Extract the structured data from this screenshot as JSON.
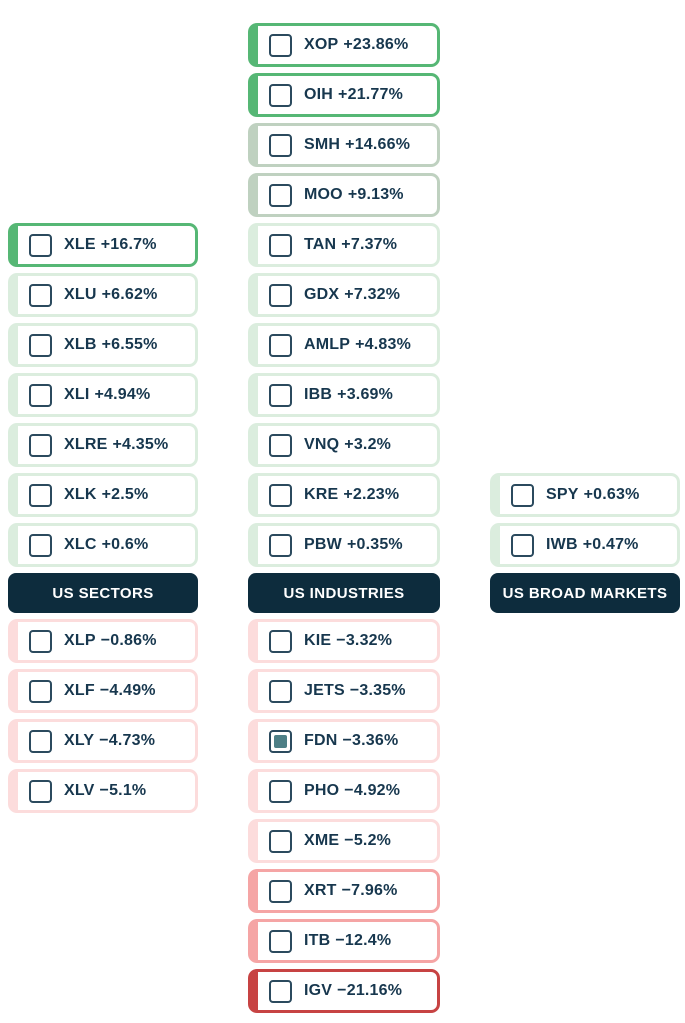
{
  "palette": {
    "green_strong": "#56b775",
    "green_medium": "#bfd1c0",
    "green_light": "#dbedde",
    "red_light": "#fcdcdc",
    "red_medium": "#f5a5a5",
    "red_strong": "#c74343",
    "header_bg": "#0d2c3d",
    "header_text": "#ffffff",
    "text": "#17374e",
    "pill_bg": "#ffffff",
    "checkbox_border": "#2b4a5e",
    "checkbox_checked_fill": "#4d7f86"
  },
  "columns": [
    {
      "header": "US SECTORS",
      "gainers": [
        {
          "ticker": "XLE",
          "change": "+16.7%",
          "tier": "green_strong",
          "checked": false
        },
        {
          "ticker": "XLU",
          "change": "+6.62%",
          "tier": "green_light",
          "checked": false
        },
        {
          "ticker": "XLB",
          "change": "+6.55%",
          "tier": "green_light",
          "checked": false
        },
        {
          "ticker": "XLI",
          "change": "+4.94%",
          "tier": "green_light",
          "checked": false
        },
        {
          "ticker": "XLRE",
          "change": "+4.35%",
          "tier": "green_light",
          "checked": false
        },
        {
          "ticker": "XLK",
          "change": "+2.5%",
          "tier": "green_light",
          "checked": false
        },
        {
          "ticker": "XLC",
          "change": "+0.6%",
          "tier": "green_light",
          "checked": false
        }
      ],
      "losers": [
        {
          "ticker": "XLP",
          "change": "−0.86%",
          "tier": "red_light",
          "checked": false
        },
        {
          "ticker": "XLF",
          "change": "−4.49%",
          "tier": "red_light",
          "checked": false
        },
        {
          "ticker": "XLY",
          "change": "−4.73%",
          "tier": "red_light",
          "checked": false
        },
        {
          "ticker": "XLV",
          "change": "−5.1%",
          "tier": "red_light",
          "checked": false
        }
      ]
    },
    {
      "header": "US INDUSTRIES",
      "gainers": [
        {
          "ticker": "XOP",
          "change": "+23.86%",
          "tier": "green_strong",
          "checked": false
        },
        {
          "ticker": "OIH",
          "change": "+21.77%",
          "tier": "green_strong",
          "checked": false
        },
        {
          "ticker": "SMH",
          "change": "+14.66%",
          "tier": "green_medium",
          "checked": false
        },
        {
          "ticker": "MOO",
          "change": "+9.13%",
          "tier": "green_medium",
          "checked": false
        },
        {
          "ticker": "TAN",
          "change": "+7.37%",
          "tier": "green_light",
          "checked": false
        },
        {
          "ticker": "GDX",
          "change": "+7.32%",
          "tier": "green_light",
          "checked": false
        },
        {
          "ticker": "AMLP",
          "change": "+4.83%",
          "tier": "green_light",
          "checked": false
        },
        {
          "ticker": "IBB",
          "change": "+3.69%",
          "tier": "green_light",
          "checked": false
        },
        {
          "ticker": "VNQ",
          "change": "+3.2%",
          "tier": "green_light",
          "checked": false
        },
        {
          "ticker": "KRE",
          "change": "+2.23%",
          "tier": "green_light",
          "checked": false
        },
        {
          "ticker": "PBW",
          "change": "+0.35%",
          "tier": "green_light",
          "checked": false
        }
      ],
      "losers": [
        {
          "ticker": "KIE",
          "change": "−3.32%",
          "tier": "red_light",
          "checked": false
        },
        {
          "ticker": "JETS",
          "change": "−3.35%",
          "tier": "red_light",
          "checked": false
        },
        {
          "ticker": "FDN",
          "change": "−3.36%",
          "tier": "red_light",
          "checked": true
        },
        {
          "ticker": "PHO",
          "change": "−4.92%",
          "tier": "red_light",
          "checked": false
        },
        {
          "ticker": "XME",
          "change": "−5.2%",
          "tier": "red_light",
          "checked": false
        },
        {
          "ticker": "XRT",
          "change": "−7.96%",
          "tier": "red_medium",
          "checked": false
        },
        {
          "ticker": "ITB",
          "change": "−12.4%",
          "tier": "red_medium",
          "checked": false
        },
        {
          "ticker": "IGV",
          "change": "−21.16%",
          "tier": "red_strong",
          "checked": false
        }
      ]
    },
    {
      "header": "US BROAD MARKETS",
      "gainers": [
        {
          "ticker": "SPY",
          "change": "+0.63%",
          "tier": "green_light",
          "checked": false
        },
        {
          "ticker": "IWB",
          "change": "+0.47%",
          "tier": "green_light",
          "checked": false
        }
      ],
      "losers": []
    }
  ]
}
